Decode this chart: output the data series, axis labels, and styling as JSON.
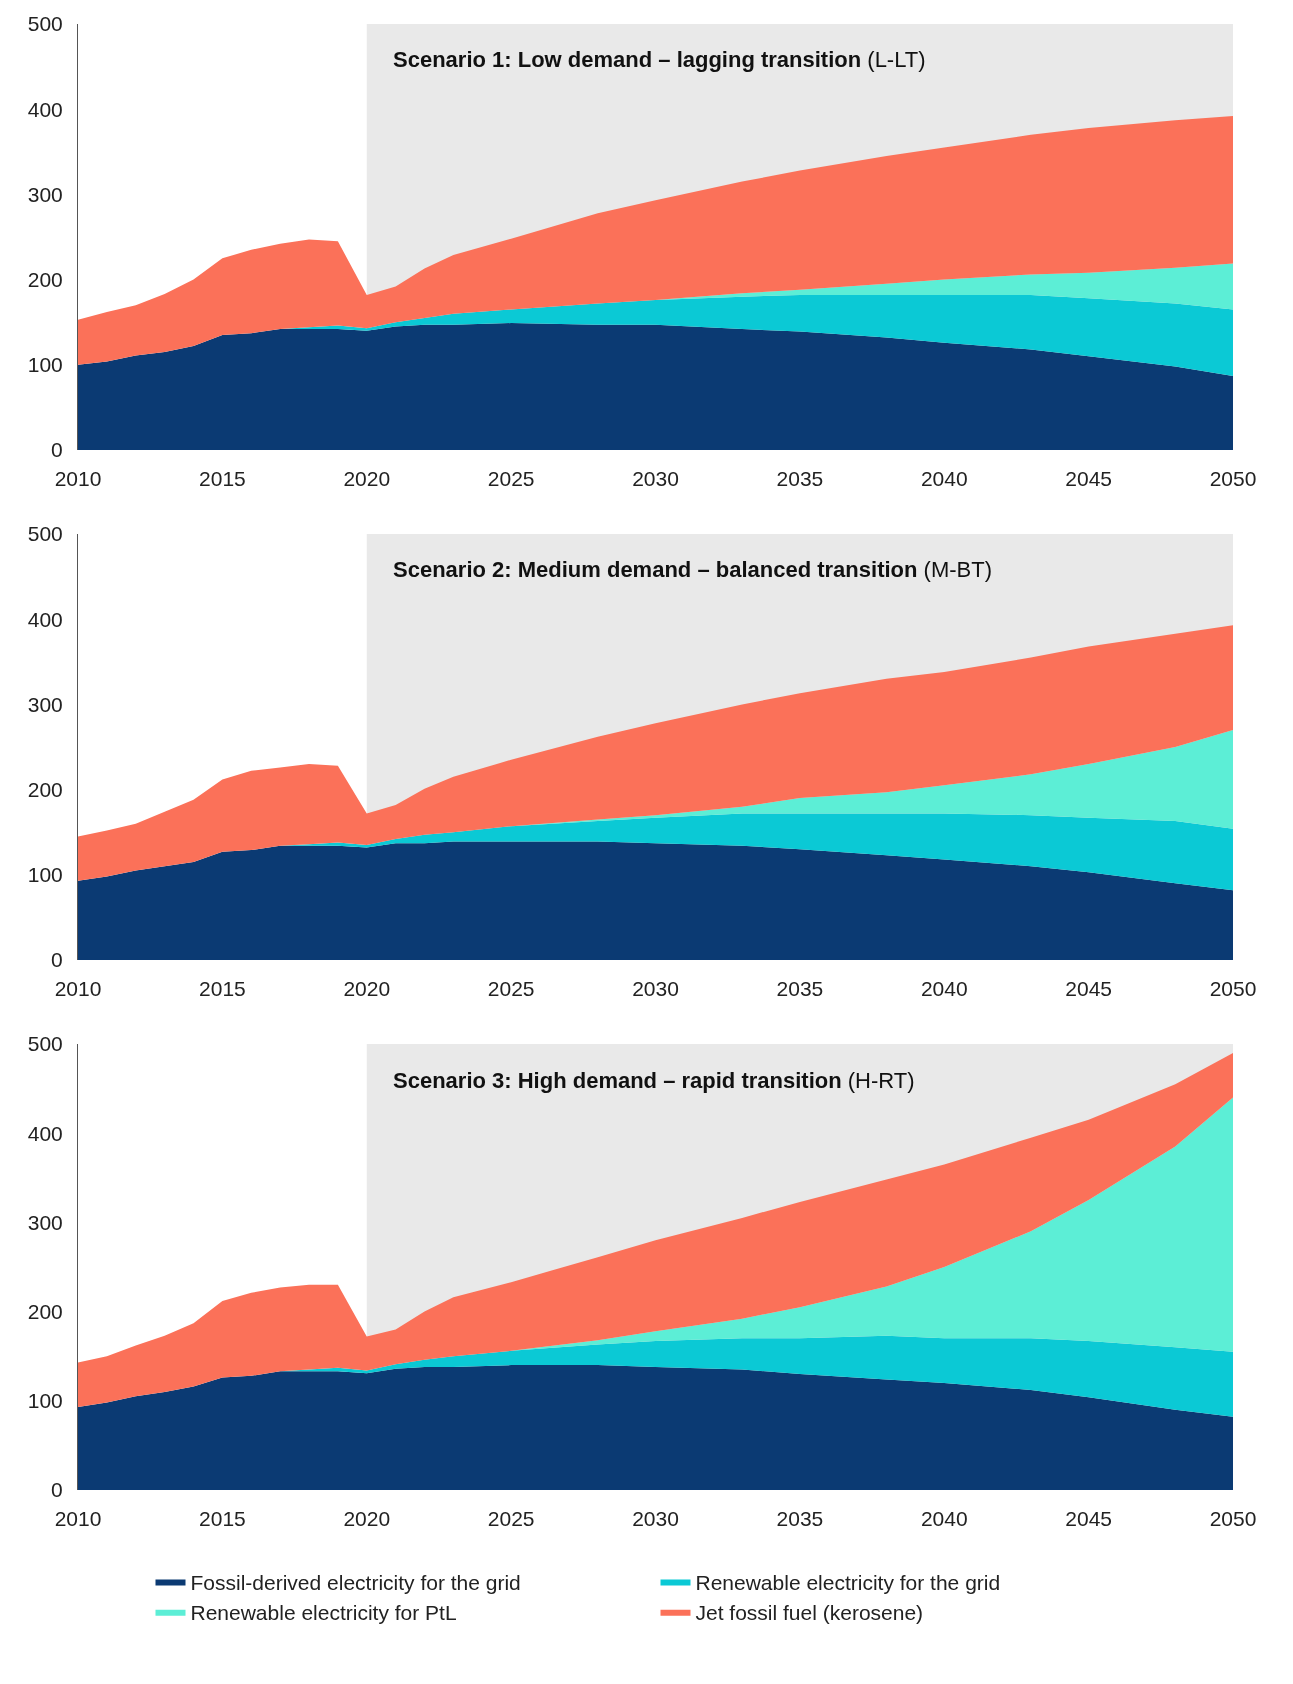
{
  "chart_data": [
    {
      "type": "area",
      "stacked": true,
      "title": "Scenario 1: Low demand – lagging transition",
      "subtitle": "(L-LT)",
      "x": [
        2010,
        2011,
        2012,
        2013,
        2014,
        2015,
        2016,
        2017,
        2018,
        2019,
        2020,
        2021,
        2022,
        2023,
        2025,
        2028,
        2030,
        2033,
        2035,
        2038,
        2040,
        2043,
        2045,
        2048,
        2050
      ],
      "series": [
        {
          "color": "#0b3a73",
          "values": [
            100,
            104,
            111,
            115,
            122,
            135,
            137,
            142,
            142,
            142,
            140,
            145,
            147,
            147,
            149,
            147,
            147,
            142,
            139,
            132,
            126,
            118,
            110,
            98,
            87
          ]
        },
        {
          "color": "#0bc9d5",
          "values": [
            0,
            0,
            0,
            0,
            0,
            0,
            0,
            0,
            2,
            4,
            3,
            5,
            8,
            13,
            16,
            25,
            29,
            38,
            43,
            50,
            56,
            64,
            68,
            74,
            78
          ]
        },
        {
          "color": "#5ceed6",
          "values": [
            0,
            0,
            0,
            0,
            0,
            0,
            0,
            0,
            0,
            0,
            0,
            0,
            0,
            0,
            0,
            0,
            0,
            4,
            6,
            13,
            18,
            24,
            30,
            42,
            54
          ]
        },
        {
          "color": "#fb7159",
          "values": [
            53,
            58,
            59,
            68,
            78,
            90,
            98,
            100,
            103,
            99,
            39,
            42,
            58,
            69,
            83,
            106,
            117,
            131,
            140,
            150,
            155,
            164,
            170,
            173,
            173
          ]
        }
      ],
      "xlim": [
        2010,
        2050
      ],
      "xticks": [
        2010,
        2015,
        2020,
        2025,
        2030,
        2035,
        2040,
        2045,
        2050
      ],
      "ylim": [
        0,
        500
      ],
      "yticks": [
        0,
        100,
        200,
        300,
        400,
        500
      ],
      "bands": [
        {
          "axis": "x",
          "from": 2020,
          "to": 2050,
          "color": "#e9e9e9"
        }
      ],
      "grid": false,
      "legend": false
    },
    {
      "type": "area",
      "stacked": true,
      "title": "Scenario 2: Medium demand – balanced transition",
      "subtitle": "(M-BT)",
      "x": [
        2010,
        2011,
        2012,
        2013,
        2014,
        2015,
        2016,
        2017,
        2018,
        2019,
        2020,
        2021,
        2022,
        2023,
        2025,
        2028,
        2030,
        2033,
        2035,
        2038,
        2040,
        2043,
        2045,
        2048,
        2050
      ],
      "series": [
        {
          "color": "#0b3a73",
          "values": [
            93,
            98,
            105,
            110,
            115,
            127,
            129,
            134,
            134,
            134,
            132,
            137,
            137,
            139,
            139,
            139,
            137,
            134,
            130,
            123,
            118,
            110,
            103,
            90,
            82
          ]
        },
        {
          "color": "#0bc9d5",
          "values": [
            0,
            0,
            0,
            0,
            0,
            0,
            0,
            0,
            2,
            4,
            3,
            5,
            10,
            11,
            18,
            24,
            30,
            38,
            42,
            49,
            54,
            60,
            64,
            73,
            72
          ]
        },
        {
          "color": "#5ceed6",
          "values": [
            0,
            0,
            0,
            0,
            0,
            0,
            0,
            0,
            0,
            0,
            0,
            0,
            0,
            0,
            0,
            2,
            3,
            8,
            18,
            25,
            33,
            48,
            63,
            87,
            116
          ]
        },
        {
          "color": "#fb7159",
          "values": [
            52,
            54,
            55,
            64,
            73,
            85,
            93,
            92,
            94,
            90,
            37,
            40,
            54,
            65,
            78,
            97,
            108,
            120,
            123,
            133,
            133,
            137,
            138,
            133,
            123
          ]
        }
      ],
      "xlim": [
        2010,
        2050
      ],
      "xticks": [
        2010,
        2015,
        2020,
        2025,
        2030,
        2035,
        2040,
        2045,
        2050
      ],
      "ylim": [
        0,
        500
      ],
      "yticks": [
        0,
        100,
        200,
        300,
        400,
        500
      ],
      "bands": [
        {
          "axis": "x",
          "from": 2020,
          "to": 2050,
          "color": "#e9e9e9"
        }
      ],
      "grid": false,
      "legend": false
    },
    {
      "type": "area",
      "stacked": true,
      "title": "Scenario 3: High demand – rapid transition",
      "subtitle": "(H-RT)",
      "x": [
        2010,
        2011,
        2012,
        2013,
        2014,
        2015,
        2016,
        2017,
        2018,
        2019,
        2020,
        2021,
        2022,
        2023,
        2025,
        2028,
        2030,
        2033,
        2035,
        2038,
        2040,
        2043,
        2045,
        2048,
        2050
      ],
      "series": [
        {
          "name": "Fossil-derived electricity for the grid",
          "color": "#0b3a73",
          "values": [
            93,
            98,
            105,
            110,
            116,
            126,
            128,
            133,
            133,
            133,
            131,
            136,
            138,
            138,
            140,
            140,
            138,
            135,
            130,
            124,
            120,
            112,
            104,
            90,
            82
          ]
        },
        {
          "name": "Renewable electricity for the grid",
          "color": "#0bc9d5",
          "values": [
            0,
            0,
            0,
            0,
            0,
            0,
            0,
            0,
            2,
            4,
            3,
            5,
            8,
            12,
            16,
            23,
            29,
            35,
            40,
            49,
            50,
            58,
            63,
            70,
            73
          ]
        },
        {
          "name": "Renewable electricity for PtL",
          "color": "#5ceed6",
          "values": [
            0,
            0,
            0,
            0,
            0,
            0,
            0,
            0,
            0,
            0,
            0,
            0,
            0,
            0,
            0,
            5,
            11,
            22,
            35,
            55,
            80,
            120,
            158,
            225,
            285
          ]
        },
        {
          "name": "Jet fossil fuel (kerosene)",
          "color": "#fb7159",
          "values": [
            50,
            52,
            57,
            63,
            71,
            86,
            93,
            94,
            95,
            93,
            38,
            39,
            54,
            66,
            77,
            93,
            102,
            113,
            118,
            120,
            115,
            105,
            90,
            70,
            50
          ]
        }
      ],
      "xlim": [
        2010,
        2050
      ],
      "xticks": [
        2010,
        2015,
        2020,
        2025,
        2030,
        2035,
        2040,
        2045,
        2050
      ],
      "ylim": [
        0,
        500
      ],
      "yticks": [
        0,
        100,
        200,
        300,
        400,
        500
      ],
      "bands": [
        {
          "axis": "x",
          "from": 2020,
          "to": 2050,
          "color": "#e9e9e9"
        }
      ],
      "grid": false,
      "legend": "bottom"
    }
  ]
}
